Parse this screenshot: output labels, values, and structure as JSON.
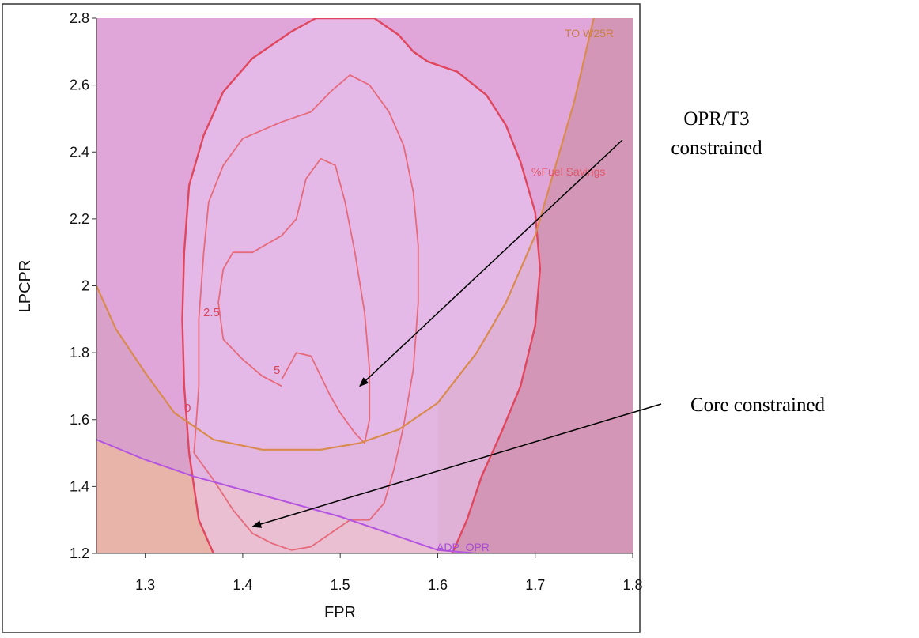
{
  "chart_data": {
    "type": "contour",
    "xlabel": "FPR",
    "ylabel": "LPCPR",
    "xlim": [
      1.25,
      1.8
    ],
    "ylim": [
      1.2,
      2.8
    ],
    "x_ticks": [
      "1.3",
      "1.4",
      "1.5",
      "1.6",
      "1.7",
      "1.8"
    ],
    "y_ticks": [
      "1.2",
      "1.4",
      "1.6",
      "1.8",
      "2",
      "2.2",
      "2.4",
      "2.6",
      "2.8"
    ],
    "grid": false,
    "curve_labels": {
      "to_w25r": "TO W25R",
      "fuel_savings": "%Fuel Savings",
      "adp_opr": "ADP_OPR"
    },
    "contour_labels": [
      "0",
      "2.5",
      "5"
    ],
    "contours": [
      {
        "level": "0",
        "points": [
          [
            1.37,
            1.2
          ],
          [
            1.355,
            1.3
          ],
          [
            1.345,
            1.5
          ],
          [
            1.34,
            1.7
          ],
          [
            1.338,
            1.9
          ],
          [
            1.34,
            2.1
          ],
          [
            1.345,
            2.3
          ],
          [
            1.36,
            2.45
          ],
          [
            1.38,
            2.58
          ],
          [
            1.41,
            2.68
          ],
          [
            1.45,
            2.76
          ],
          [
            1.475,
            2.8
          ],
          [
            1.535,
            2.8
          ],
          [
            1.56,
            2.75
          ],
          [
            1.575,
            2.7
          ],
          [
            1.59,
            2.67
          ],
          [
            1.62,
            2.64
          ],
          [
            1.65,
            2.57
          ],
          [
            1.67,
            2.48
          ],
          [
            1.685,
            2.37
          ],
          [
            1.7,
            2.22
          ],
          [
            1.705,
            2.05
          ],
          [
            1.7,
            1.88
          ],
          [
            1.685,
            1.7
          ],
          [
            1.665,
            1.56
          ],
          [
            1.645,
            1.43
          ],
          [
            1.63,
            1.3
          ],
          [
            1.615,
            1.2
          ]
        ]
      },
      {
        "level": "2.5",
        "points": [
          [
            1.35,
            1.5
          ],
          [
            1.355,
            1.7
          ],
          [
            1.355,
            1.9
          ],
          [
            1.36,
            2.1
          ],
          [
            1.365,
            2.25
          ],
          [
            1.38,
            2.36
          ],
          [
            1.4,
            2.44
          ],
          [
            1.44,
            2.49
          ],
          [
            1.47,
            2.52
          ],
          [
            1.49,
            2.58
          ],
          [
            1.51,
            2.63
          ],
          [
            1.53,
            2.6
          ],
          [
            1.55,
            2.52
          ],
          [
            1.565,
            2.42
          ],
          [
            1.575,
            2.28
          ],
          [
            1.58,
            2.12
          ],
          [
            1.58,
            1.95
          ],
          [
            1.575,
            1.75
          ],
          [
            1.565,
            1.58
          ],
          [
            1.555,
            1.45
          ],
          [
            1.545,
            1.35
          ],
          [
            1.53,
            1.3
          ],
          [
            1.51,
            1.3
          ],
          [
            1.49,
            1.26
          ],
          [
            1.47,
            1.22
          ],
          [
            1.45,
            1.21
          ],
          [
            1.43,
            1.23
          ],
          [
            1.41,
            1.26
          ],
          [
            1.39,
            1.33
          ],
          [
            1.37,
            1.42
          ],
          [
            1.35,
            1.5
          ]
        ]
      },
      {
        "level": "5",
        "points": [
          [
            1.44,
            1.7
          ],
          [
            1.42,
            1.73
          ],
          [
            1.4,
            1.78
          ],
          [
            1.38,
            1.84
          ],
          [
            1.375,
            1.95
          ],
          [
            1.38,
            2.05
          ],
          [
            1.39,
            2.1
          ],
          [
            1.41,
            2.1
          ],
          [
            1.44,
            2.15
          ],
          [
            1.455,
            2.2
          ],
          [
            1.465,
            2.32
          ],
          [
            1.48,
            2.38
          ],
          [
            1.495,
            2.36
          ],
          [
            1.505,
            2.25
          ],
          [
            1.515,
            2.1
          ],
          [
            1.525,
            1.92
          ],
          [
            1.53,
            1.75
          ],
          [
            1.53,
            1.6
          ],
          [
            1.525,
            1.53
          ],
          [
            1.515,
            1.56
          ],
          [
            1.5,
            1.62
          ],
          [
            1.49,
            1.67
          ],
          [
            1.48,
            1.73
          ],
          [
            1.47,
            1.79
          ],
          [
            1.455,
            1.8
          ],
          [
            1.44,
            1.72
          ]
        ]
      }
    ],
    "constraint_lines": [
      {
        "name": "TO W25R",
        "points": [
          [
            1.25,
            2.0
          ],
          [
            1.27,
            1.87
          ],
          [
            1.3,
            1.74
          ],
          [
            1.33,
            1.62
          ],
          [
            1.37,
            1.54
          ],
          [
            1.42,
            1.51
          ],
          [
            1.48,
            1.51
          ],
          [
            1.52,
            1.53
          ],
          [
            1.56,
            1.57
          ],
          [
            1.6,
            1.65
          ],
          [
            1.64,
            1.8
          ],
          [
            1.67,
            1.95
          ],
          [
            1.7,
            2.15
          ],
          [
            1.72,
            2.35
          ],
          [
            1.74,
            2.55
          ],
          [
            1.76,
            2.8
          ]
        ]
      },
      {
        "name": "ADP_OPR",
        "points": [
          [
            1.25,
            1.54
          ],
          [
            1.3,
            1.48
          ],
          [
            1.35,
            1.43
          ],
          [
            1.4,
            1.39
          ],
          [
            1.45,
            1.35
          ],
          [
            1.5,
            1.31
          ],
          [
            1.55,
            1.26
          ],
          [
            1.6,
            1.21
          ],
          [
            1.64,
            1.2
          ]
        ]
      }
    ],
    "annotations": [
      {
        "text_lines": [
          "OPR/T3",
          "constrained"
        ],
        "arrow_to": [
          1.52,
          1.7
        ]
      },
      {
        "text_lines": [
          "Core constrained"
        ],
        "arrow_to": [
          1.41,
          1.28
        ]
      }
    ]
  }
}
